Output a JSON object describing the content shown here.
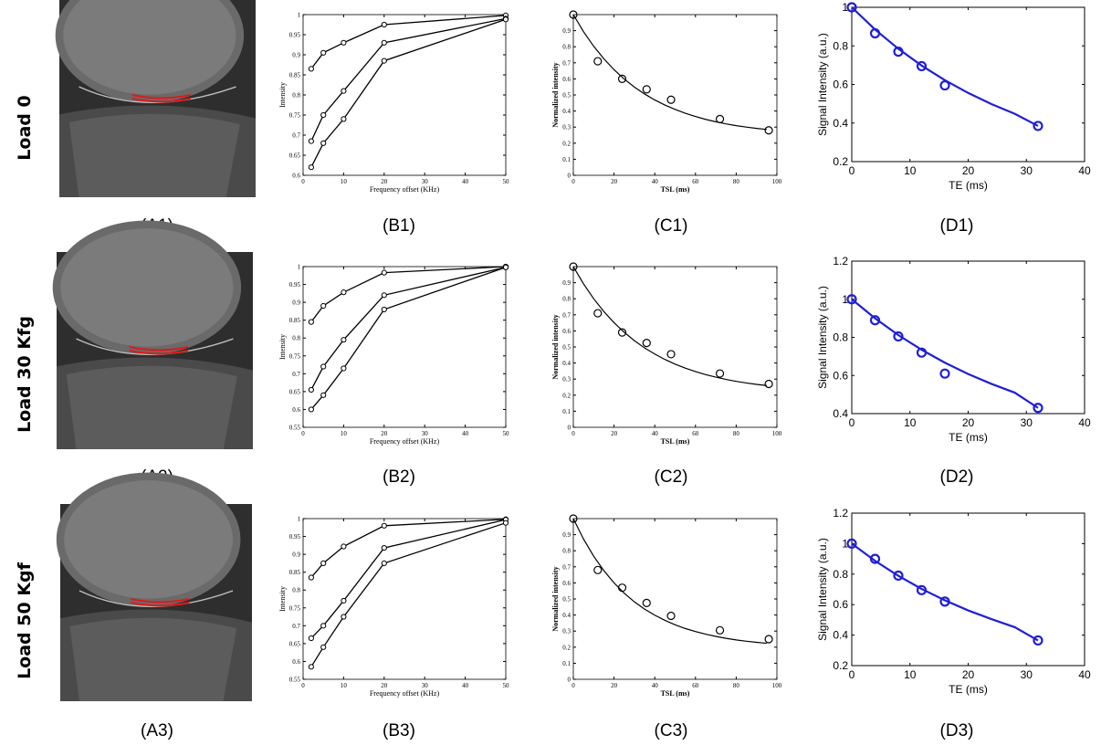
{
  "row_labels": [
    "Load 0",
    "Load 30 Kfg",
    "Load 50 Kgf"
  ],
  "captions": {
    "A": [
      "(A1)",
      "(A2)",
      "(A3)"
    ],
    "B": [
      "(B1)",
      "(B2)",
      "(B3)"
    ],
    "C": [
      "(C1)",
      "(C2)",
      "(C3)"
    ],
    "D": [
      "(D1)",
      "(D2)",
      "(D3)"
    ]
  },
  "colors": {
    "fit_blue": "#1f1fd6",
    "roi_red": "#e01818",
    "mri_bg": "#3a3a3a",
    "black": "#000000"
  },
  "images": [
    {
      "description_icon": "knee-mri-sagittal"
    },
    {
      "description_icon": "knee-mri-sagittal"
    },
    {
      "description_icon": "knee-mri-sagittal"
    }
  ],
  "chart_data": [
    {
      "id": "B1",
      "type": "line",
      "xlabel": "Frequency offset (KHz)",
      "ylabel": "Intensity",
      "xlim": [
        0,
        50
      ],
      "ylim": [
        0.6,
        1
      ],
      "xticks": [
        0,
        10,
        20,
        30,
        40,
        50
      ],
      "yticks": [
        0.6,
        0.65,
        0.7,
        0.75,
        0.8,
        0.85,
        0.9,
        0.95,
        1
      ],
      "series": [
        {
          "x": [
            2,
            5,
            10,
            20,
            50
          ],
          "y": [
            0.865,
            0.905,
            0.93,
            0.975,
            0.998
          ]
        },
        {
          "x": [
            2,
            5,
            10,
            20,
            50
          ],
          "y": [
            0.685,
            0.75,
            0.81,
            0.93,
            0.99
          ]
        },
        {
          "x": [
            2,
            5,
            10,
            20,
            50
          ],
          "y": [
            0.62,
            0.68,
            0.74,
            0.885,
            0.988
          ]
        }
      ]
    },
    {
      "id": "B2",
      "type": "line",
      "xlabel": "Frequency offset (KHz)",
      "ylabel": "Intensity",
      "xlim": [
        0,
        50
      ],
      "ylim": [
        0.55,
        1
      ],
      "xticks": [
        0,
        10,
        20,
        30,
        40,
        50
      ],
      "yticks": [
        0.55,
        0.6,
        0.65,
        0.7,
        0.75,
        0.8,
        0.85,
        0.9,
        0.95,
        1
      ],
      "series": [
        {
          "x": [
            2,
            5,
            10,
            20,
            50
          ],
          "y": [
            0.845,
            0.89,
            0.928,
            0.983,
            1.0
          ]
        },
        {
          "x": [
            2,
            5,
            10,
            20,
            50
          ],
          "y": [
            0.655,
            0.72,
            0.795,
            0.92,
            0.998
          ]
        },
        {
          "x": [
            2,
            5,
            10,
            20,
            50
          ],
          "y": [
            0.6,
            0.64,
            0.715,
            0.88,
            0.998
          ]
        }
      ]
    },
    {
      "id": "B3",
      "type": "line",
      "xlabel": "Frequency offset (KHz)",
      "ylabel": "Intensity",
      "xlim": [
        0,
        50
      ],
      "ylim": [
        0.55,
        1
      ],
      "xticks": [
        0,
        10,
        20,
        30,
        40,
        50
      ],
      "yticks": [
        0.55,
        0.6,
        0.65,
        0.7,
        0.75,
        0.8,
        0.85,
        0.9,
        0.95,
        1
      ],
      "series": [
        {
          "x": [
            2,
            5,
            10,
            20,
            50
          ],
          "y": [
            0.835,
            0.875,
            0.922,
            0.98,
            0.998
          ]
        },
        {
          "x": [
            2,
            5,
            10,
            20,
            50
          ],
          "y": [
            0.665,
            0.7,
            0.77,
            0.918,
            0.997
          ]
        },
        {
          "x": [
            2,
            5,
            10,
            20,
            50
          ],
          "y": [
            0.585,
            0.64,
            0.725,
            0.875,
            0.988
          ]
        }
      ]
    },
    {
      "id": "C1",
      "type": "scatter",
      "xlabel": "TSL (ms)",
      "ylabel": "Normalized intensity",
      "xlim": [
        0,
        100
      ],
      "ylim": [
        0,
        1
      ],
      "xticks": [
        0,
        20,
        40,
        60,
        80,
        100
      ],
      "yticks": [
        0,
        0.1,
        0.2,
        0.3,
        0.4,
        0.5,
        0.6,
        0.7,
        0.8,
        0.9
      ],
      "points": {
        "x": [
          0,
          12,
          24,
          36,
          48,
          72,
          96
        ],
        "y": [
          1.0,
          0.71,
          0.6,
          0.535,
          0.47,
          0.35,
          0.28
        ]
      },
      "fit": {
        "x": [
          0,
          5,
          10,
          15,
          20,
          25,
          30,
          35,
          40,
          45,
          50,
          55,
          60,
          65,
          70,
          75,
          80,
          85,
          90,
          95
        ],
        "y": [
          1.0,
          0.894,
          0.803,
          0.725,
          0.657,
          0.599,
          0.549,
          0.506,
          0.469,
          0.437,
          0.41,
          0.386,
          0.366,
          0.348,
          0.333,
          0.32,
          0.309,
          0.3,
          0.292,
          0.285
        ]
      }
    },
    {
      "id": "C2",
      "type": "scatter",
      "xlabel": "TSL (ms)",
      "ylabel": "Normalized intensity",
      "xlim": [
        0,
        100
      ],
      "ylim": [
        0,
        1
      ],
      "xticks": [
        0,
        20,
        40,
        60,
        80,
        100
      ],
      "yticks": [
        0,
        0.1,
        0.2,
        0.3,
        0.4,
        0.5,
        0.6,
        0.7,
        0.8,
        0.9
      ],
      "points": {
        "x": [
          0,
          12,
          24,
          36,
          48,
          72,
          96
        ],
        "y": [
          1.0,
          0.71,
          0.59,
          0.525,
          0.455,
          0.335,
          0.27
        ]
      },
      "fit": {
        "x": [
          0,
          5,
          10,
          15,
          20,
          25,
          30,
          35,
          40,
          45,
          50,
          55,
          60,
          65,
          70,
          75,
          80,
          85,
          90,
          95
        ],
        "y": [
          1.0,
          0.893,
          0.8,
          0.72,
          0.651,
          0.591,
          0.539,
          0.494,
          0.456,
          0.422,
          0.393,
          0.368,
          0.347,
          0.328,
          0.312,
          0.298,
          0.286,
          0.276,
          0.267,
          0.26
        ]
      }
    },
    {
      "id": "C3",
      "type": "scatter",
      "xlabel": "TSL (ms)",
      "ylabel": "Normalized intensity",
      "xlim": [
        0,
        100
      ],
      "ylim": [
        0,
        1
      ],
      "xticks": [
        0,
        20,
        40,
        60,
        80,
        100
      ],
      "yticks": [
        0,
        0.1,
        0.2,
        0.3,
        0.4,
        0.5,
        0.6,
        0.7,
        0.8,
        0.9
      ],
      "points": {
        "x": [
          0,
          12,
          24,
          36,
          48,
          72,
          96
        ],
        "y": [
          1.0,
          0.68,
          0.57,
          0.475,
          0.395,
          0.305,
          0.25
        ]
      },
      "fit": {
        "x": [
          0,
          5,
          10,
          15,
          20,
          25,
          30,
          35,
          40,
          45,
          50,
          55,
          60,
          65,
          70,
          75,
          80,
          85,
          90,
          95
        ],
        "y": [
          1.0,
          0.873,
          0.766,
          0.676,
          0.6,
          0.536,
          0.482,
          0.437,
          0.399,
          0.367,
          0.339,
          0.316,
          0.297,
          0.281,
          0.267,
          0.255,
          0.245,
          0.237,
          0.23,
          0.224
        ]
      }
    },
    {
      "id": "D1",
      "type": "scatter",
      "xlabel": "TE (ms)",
      "ylabel": "Signal Intensity (a.u.)",
      "xlim": [
        0,
        40
      ],
      "ylim": [
        0.2,
        1
      ],
      "xticks": [
        0,
        10,
        20,
        30,
        40
      ],
      "yticks": [
        0.2,
        0.4,
        0.6,
        0.8,
        1
      ],
      "points": {
        "x": [
          0,
          4,
          8,
          12,
          16,
          32
        ],
        "y": [
          1.0,
          0.865,
          0.77,
          0.695,
          0.595,
          0.385
        ]
      },
      "fit": {
        "x": [
          0,
          4,
          8,
          12,
          16,
          20,
          24,
          28,
          32
        ],
        "y": [
          1.0,
          0.885,
          0.785,
          0.698,
          0.622,
          0.556,
          0.498,
          0.448,
          0.385
        ]
      }
    },
    {
      "id": "D2",
      "type": "scatter",
      "xlabel": "TE (ms)",
      "ylabel": "Signal Intensity (a.u.)",
      "xlim": [
        0,
        40
      ],
      "ylim": [
        0.4,
        1.2
      ],
      "xticks": [
        0,
        10,
        20,
        30,
        40
      ],
      "yticks": [
        0.4,
        0.6,
        0.8,
        1,
        1.2
      ],
      "points": {
        "x": [
          0,
          4,
          8,
          12,
          16,
          32
        ],
        "y": [
          1.0,
          0.89,
          0.805,
          0.72,
          0.61,
          0.43
        ]
      },
      "fit": {
        "x": [
          0,
          4,
          8,
          12,
          16,
          20,
          24,
          28,
          32
        ],
        "y": [
          1.0,
          0.9,
          0.812,
          0.735,
          0.667,
          0.608,
          0.556,
          0.51,
          0.43
        ]
      }
    },
    {
      "id": "D3",
      "type": "scatter",
      "xlabel": "TE (ms)",
      "ylabel": "Signal Intensity (a.u.)",
      "xlim": [
        0,
        40
      ],
      "ylim": [
        0.2,
        1.2
      ],
      "xticks": [
        0,
        10,
        20,
        30,
        40
      ],
      "yticks": [
        0.2,
        0.4,
        0.6,
        0.8,
        1,
        1.2
      ],
      "points": {
        "x": [
          0,
          4,
          8,
          12,
          16,
          32
        ],
        "y": [
          1.0,
          0.9,
          0.79,
          0.695,
          0.62,
          0.365
        ]
      },
      "fit": {
        "x": [
          0,
          4,
          8,
          12,
          16,
          20,
          24,
          28,
          32
        ],
        "y": [
          1.0,
          0.887,
          0.789,
          0.703,
          0.628,
          0.562,
          0.505,
          0.452,
          0.365
        ]
      }
    }
  ]
}
